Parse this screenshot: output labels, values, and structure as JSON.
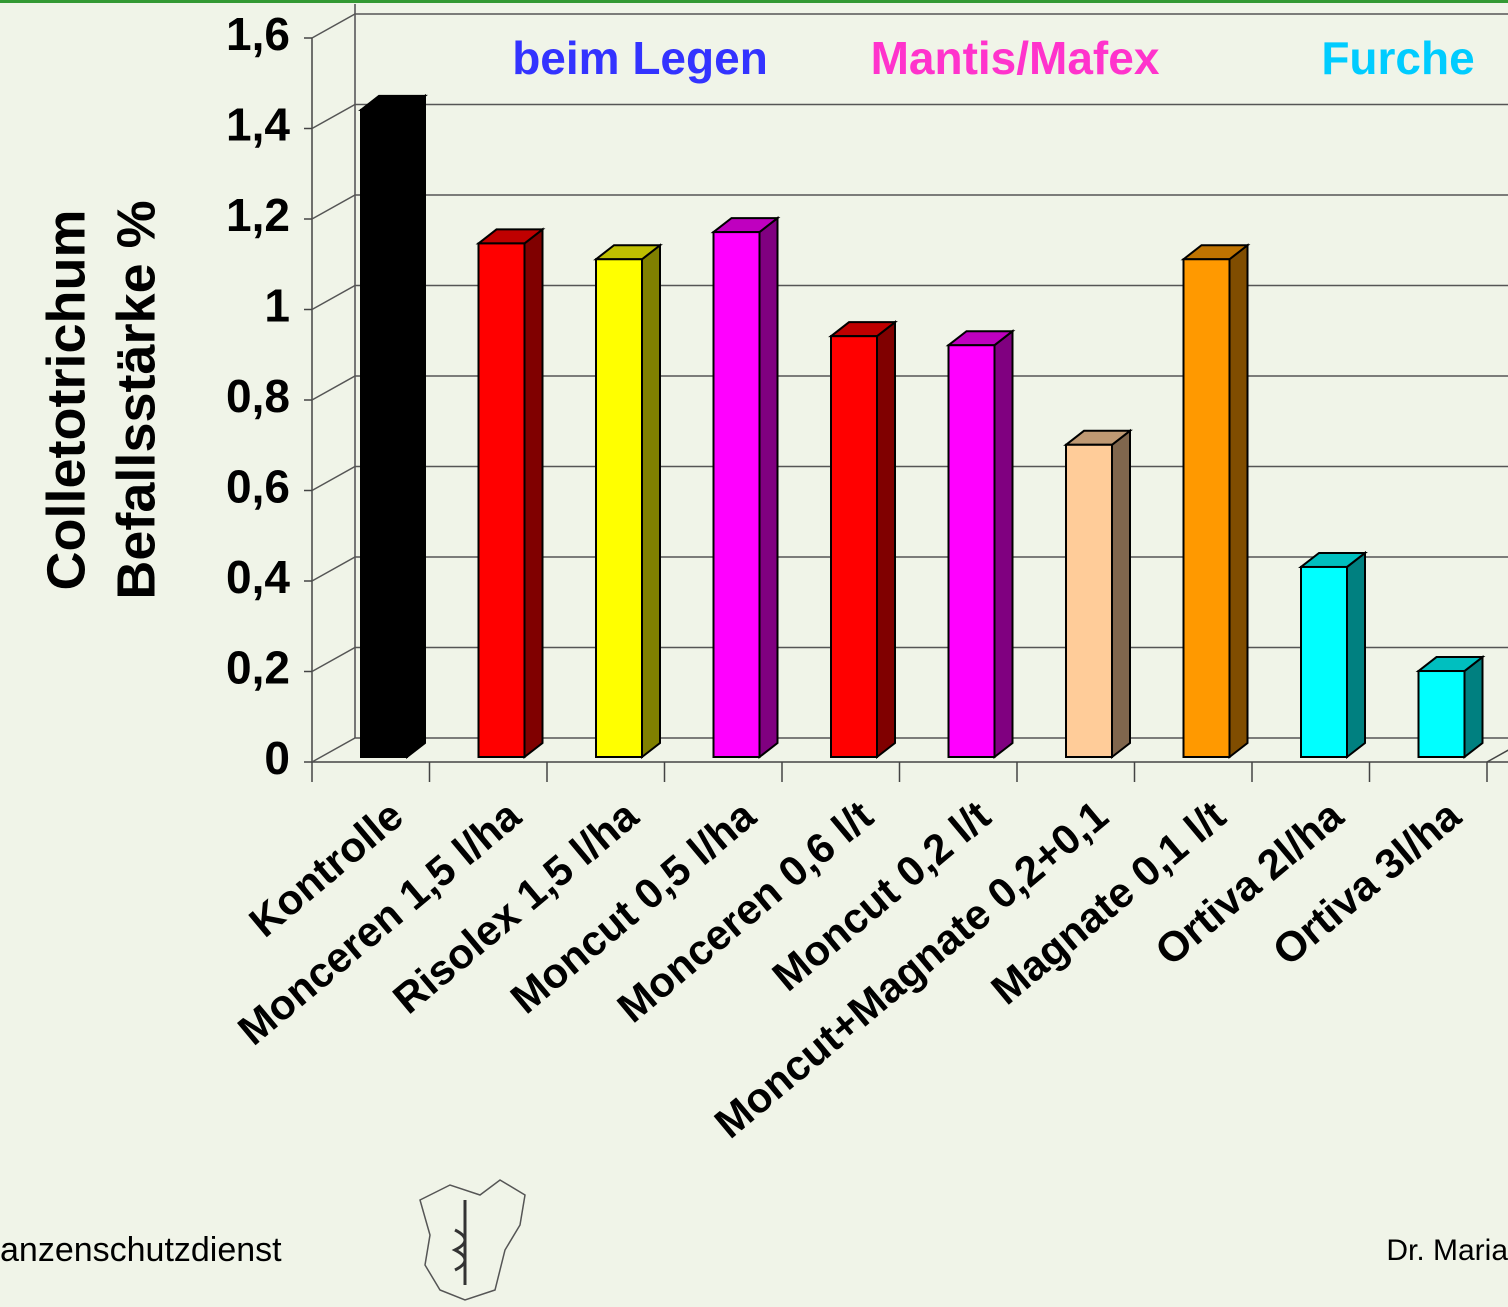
{
  "chart_data": {
    "type": "bar",
    "ylabel": [
      "Colletotrichum",
      "Befallsstärke %"
    ],
    "annotations": [
      {
        "text": "beim Legen",
        "color": "#3333ff"
      },
      {
        "text": "Mantis/Mafex",
        "color": "#ff33cc"
      },
      {
        "text": "Furche",
        "color": "#00ccff"
      }
    ],
    "categories": [
      "Kontrolle",
      "Monceren 1,5 l/ha",
      "Risolex 1,5 l/ha",
      "Moncut 0,5 l/ha",
      "Monceren 0,6 l/t",
      "Moncut 0,2 l/t",
      "Moncut+Magnate 0,2+0,1",
      "Magnate 0,1 l/t",
      "Ortiva 2l/ha",
      "Ortiva 3l/ha"
    ],
    "values": [
      1.43,
      1.135,
      1.1,
      1.16,
      0.93,
      0.91,
      0.69,
      1.1,
      0.42,
      0.19
    ],
    "colors": [
      "#000000",
      "#ff0000",
      "#ffff00",
      "#ff00ff",
      "#ff0000",
      "#ff00ff",
      "#ffcc99",
      "#ff9900",
      "#00ffff",
      "#00ffff"
    ],
    "ylim": [
      0,
      1.6
    ],
    "yticks": [
      0,
      {
        "value": 0.2,
        "label": "0,2"
      },
      {
        "value": 0.4,
        "label": "0,4"
      },
      {
        "value": 0.6,
        "label": "0,6"
      },
      {
        "value": 0.8,
        "label": "0,8"
      },
      1,
      {
        "value": 1.2,
        "label": "1,2"
      },
      {
        "value": 1.4,
        "label": "1,4"
      },
      {
        "value": 1.6,
        "label": "1,6"
      }
    ],
    "grid": true,
    "footer": [
      "anzenschutzdienst",
      "Dr. Maria"
    ]
  }
}
